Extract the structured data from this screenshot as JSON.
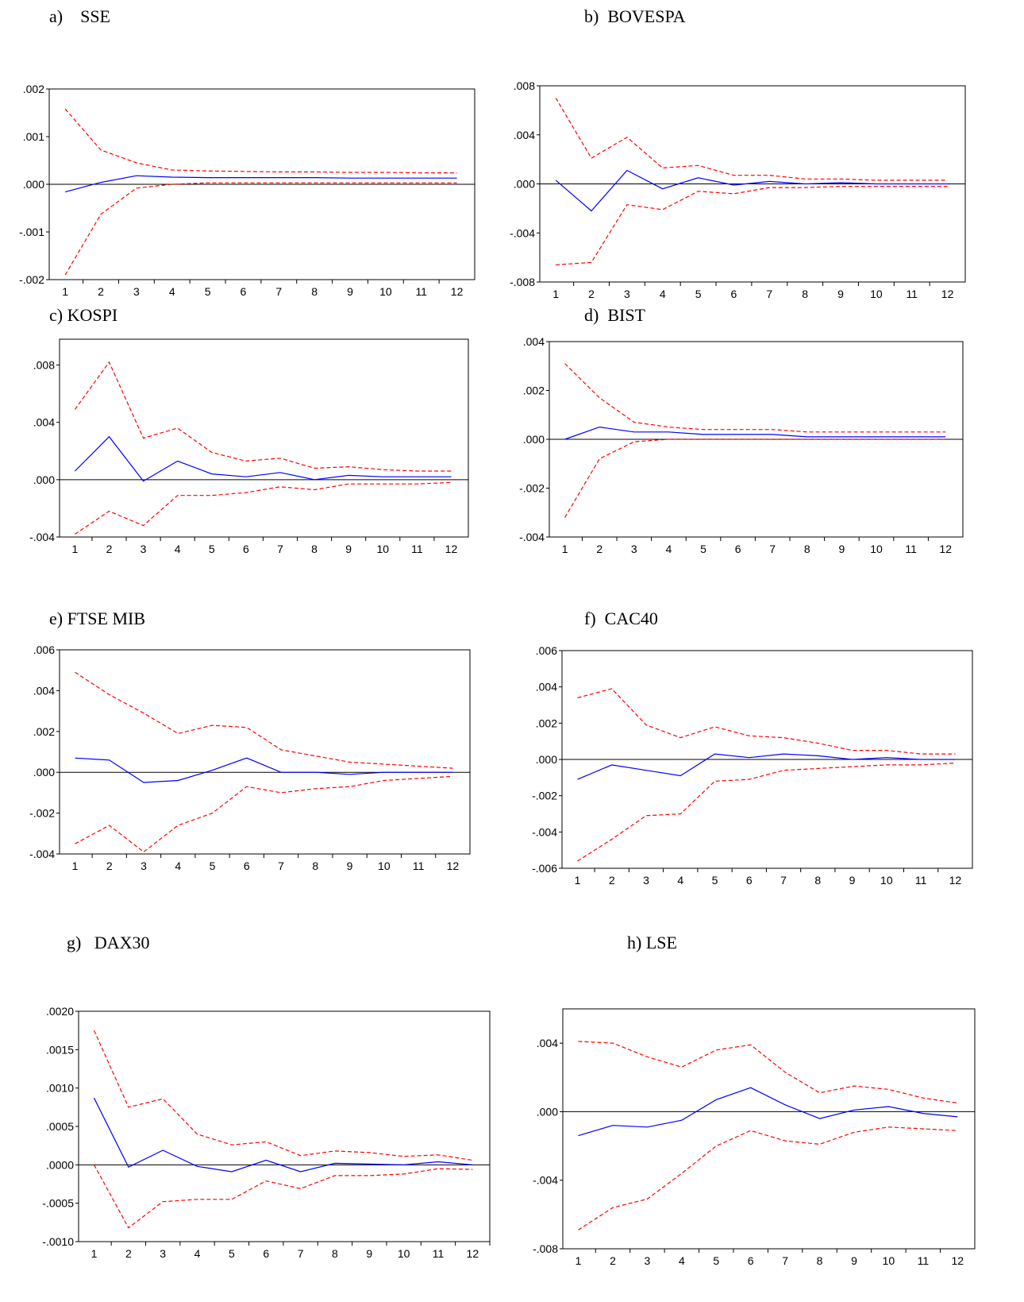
{
  "colors": {
    "response": "#0000ff",
    "bands": "#ff0000",
    "frame": "#000000"
  },
  "chart_data": [
    {
      "id": "a",
      "title": "a)    SSE",
      "type": "line",
      "x": [
        1,
        2,
        3,
        4,
        5,
        6,
        7,
        8,
        9,
        10,
        11,
        12
      ],
      "ylim": [
        -0.002,
        0.002
      ],
      "ytick_values": [
        -0.002,
        -0.001,
        0,
        0.001,
        0.002
      ],
      "ytick_labels": [
        "-.002",
        "-.001",
        ".000",
        ".001",
        ".002"
      ],
      "series": [
        {
          "role": "response",
          "values": [
            -0.00016,
            4e-05,
            0.00018,
            0.00015,
            0.00014,
            0.00014,
            0.00014,
            0.00014,
            0.00013,
            0.00013,
            0.00013,
            0.00013
          ]
        },
        {
          "role": "upper",
          "values": [
            0.00158,
            0.00072,
            0.00045,
            0.0003,
            0.00028,
            0.00027,
            0.00026,
            0.00026,
            0.00025,
            0.00025,
            0.00024,
            0.00024
          ]
        },
        {
          "role": "lower",
          "values": [
            -0.0019,
            -0.00063,
            -8e-05,
            0.0,
            3e-05,
            3e-05,
            3e-05,
            3e-05,
            3e-05,
            3e-05,
            3e-05,
            3e-05
          ]
        }
      ]
    },
    {
      "id": "b",
      "title": "b)  BOVESPA",
      "type": "line",
      "x": [
        1,
        2,
        3,
        4,
        5,
        6,
        7,
        8,
        9,
        10,
        11,
        12
      ],
      "ylim": [
        -0.008,
        0.008
      ],
      "ytick_values": [
        -0.008,
        -0.004,
        0,
        0.004,
        0.008
      ],
      "ytick_labels": [
        "-.008",
        "-.004",
        ".000",
        ".004",
        ".008"
      ],
      "series": [
        {
          "role": "response",
          "values": [
            0.0003,
            -0.0022,
            0.0011,
            -0.0004,
            0.0005,
            -0.0001,
            0.0002,
            0.0,
            0.0001,
            0.0,
            0.0,
            0.0
          ]
        },
        {
          "role": "upper",
          "values": [
            0.007,
            0.0021,
            0.0038,
            0.0013,
            0.0015,
            0.0007,
            0.0007,
            0.0004,
            0.0004,
            0.0003,
            0.0003,
            0.0003
          ]
        },
        {
          "role": "lower",
          "values": [
            -0.0066,
            -0.0064,
            -0.0017,
            -0.0021,
            -0.0006,
            -0.0008,
            -0.0003,
            -0.0003,
            -0.0002,
            -0.0002,
            -0.0002,
            -0.0002
          ]
        }
      ]
    },
    {
      "id": "c",
      "title": "c) KOSPI",
      "type": "line",
      "x": [
        1,
        2,
        3,
        4,
        5,
        6,
        7,
        8,
        9,
        10,
        11,
        12
      ],
      "ylim": [
        -0.004,
        0.0098
      ],
      "ytick_values": [
        -0.004,
        0,
        0.004,
        0.008
      ],
      "ytick_labels": [
        "-.004",
        ".000",
        ".004",
        ".008"
      ],
      "series": [
        {
          "role": "response",
          "values": [
            0.0006,
            0.003,
            -0.0001,
            0.0013,
            0.0004,
            0.0002,
            0.0005,
            0.0,
            0.0003,
            0.0002,
            0.0002,
            0.0002
          ]
        },
        {
          "role": "upper",
          "values": [
            0.0049,
            0.0082,
            0.0029,
            0.0036,
            0.0019,
            0.0013,
            0.0015,
            0.0008,
            0.0009,
            0.0007,
            0.0006,
            0.0006
          ]
        },
        {
          "role": "lower",
          "values": [
            -0.0038,
            -0.0022,
            -0.0032,
            -0.0011,
            -0.0011,
            -0.0009,
            -0.0005,
            -0.0007,
            -0.0003,
            -0.0003,
            -0.0003,
            -0.0002
          ]
        }
      ]
    },
    {
      "id": "d",
      "title": "d)  BIST",
      "type": "line",
      "x": [
        1,
        2,
        3,
        4,
        5,
        6,
        7,
        8,
        9,
        10,
        11,
        12
      ],
      "ylim": [
        -0.004,
        0.004
      ],
      "ytick_values": [
        -0.004,
        -0.002,
        0,
        0.002,
        0.004
      ],
      "ytick_labels": [
        "-.004",
        "-.002",
        ".000",
        ".002",
        ".004"
      ],
      "series": [
        {
          "role": "response",
          "values": [
            0.0,
            0.0005,
            0.0003,
            0.0003,
            0.0002,
            0.0002,
            0.0002,
            0.0001,
            0.0001,
            0.0001,
            0.0001,
            0.0001
          ]
        },
        {
          "role": "upper",
          "values": [
            0.0031,
            0.0017,
            0.0007,
            0.0005,
            0.0004,
            0.0004,
            0.0004,
            0.0003,
            0.0003,
            0.0003,
            0.0003,
            0.0003
          ]
        },
        {
          "role": "lower",
          "values": [
            -0.0032,
            -0.0008,
            -0.0001,
            0.0,
            0.0,
            0.0,
            0.0,
            0.0,
            0.0,
            0.0,
            0.0,
            0.0
          ]
        }
      ]
    },
    {
      "id": "e",
      "title": "e) FTSE MIB",
      "type": "line",
      "x": [
        1,
        2,
        3,
        4,
        5,
        6,
        7,
        8,
        9,
        10,
        11,
        12
      ],
      "ylim": [
        -0.004,
        0.006
      ],
      "ytick_values": [
        -0.004,
        -0.002,
        0,
        0.002,
        0.004,
        0.006
      ],
      "ytick_labels": [
        "-.004",
        "-.002",
        ".000",
        ".002",
        ".004",
        ".006"
      ],
      "series": [
        {
          "role": "response",
          "values": [
            0.0007,
            0.0006,
            -0.0005,
            -0.0004,
            0.0001,
            0.0007,
            0.0,
            0.0,
            -0.0001,
            0.0,
            0.0,
            0.0
          ]
        },
        {
          "role": "upper",
          "values": [
            0.0049,
            0.0038,
            0.0029,
            0.0019,
            0.0023,
            0.0022,
            0.0011,
            0.0008,
            0.0005,
            0.0004,
            0.0003,
            0.0002
          ]
        },
        {
          "role": "lower",
          "values": [
            -0.0035,
            -0.0026,
            -0.0039,
            -0.0026,
            -0.002,
            -0.0007,
            -0.001,
            -0.0008,
            -0.0007,
            -0.0004,
            -0.0003,
            -0.0002
          ]
        }
      ]
    },
    {
      "id": "f",
      "title": "f)  CAC40",
      "type": "line",
      "x": [
        1,
        2,
        3,
        4,
        5,
        6,
        7,
        8,
        9,
        10,
        11,
        12
      ],
      "ylim": [
        -0.006,
        0.006
      ],
      "ytick_values": [
        -0.006,
        -0.004,
        -0.002,
        0,
        0.002,
        0.004,
        0.006
      ],
      "ytick_labels": [
        "-.006",
        "-.004",
        "-.002",
        ".000",
        ".002",
        ".004",
        ".006"
      ],
      "series": [
        {
          "role": "response",
          "values": [
            -0.0011,
            -0.0003,
            -0.0006,
            -0.0009,
            0.0003,
            0.0001,
            0.0003,
            0.0002,
            0.0,
            0.0001,
            0.0,
            0.0
          ]
        },
        {
          "role": "upper",
          "values": [
            0.0034,
            0.0039,
            0.0019,
            0.0012,
            0.0018,
            0.0013,
            0.0012,
            0.0009,
            0.0005,
            0.0005,
            0.0003,
            0.0003
          ]
        },
        {
          "role": "lower",
          "values": [
            -0.0056,
            -0.0044,
            -0.0031,
            -0.003,
            -0.0012,
            -0.0011,
            -0.0006,
            -0.0005,
            -0.0004,
            -0.0003,
            -0.0003,
            -0.0002
          ]
        }
      ]
    },
    {
      "id": "g",
      "title": "g)   DAX30",
      "type": "line",
      "x": [
        1,
        2,
        3,
        4,
        5,
        6,
        7,
        8,
        9,
        10,
        11,
        12
      ],
      "ylim": [
        -0.001,
        0.002
      ],
      "ytick_values": [
        -0.001,
        -0.0005,
        0,
        0.0005,
        0.001,
        0.0015,
        0.002
      ],
      "ytick_labels": [
        "-.0010",
        "-.0005",
        ".0000",
        ".0005",
        ".0010",
        ".0015",
        ".0020"
      ],
      "series": [
        {
          "role": "response",
          "values": [
            0.00087,
            -3e-05,
            0.00019,
            -2e-05,
            -9e-05,
            6e-05,
            -9e-05,
            2e-05,
            1e-05,
            0.0,
            4e-05,
            0.0
          ]
        },
        {
          "role": "upper",
          "values": [
            0.00175,
            0.00075,
            0.00086,
            0.0004,
            0.00026,
            0.0003,
            0.00012,
            0.00018,
            0.00016,
            0.00011,
            0.00013,
            6e-05
          ]
        },
        {
          "role": "lower",
          "values": [
            0.0,
            -0.00082,
            -0.00048,
            -0.00045,
            -0.00045,
            -0.00021,
            -0.00031,
            -0.00014,
            -0.00014,
            -0.00012,
            -5e-05,
            -6e-05
          ]
        }
      ]
    },
    {
      "id": "h",
      "title": "h) LSE",
      "type": "line",
      "x": [
        1,
        2,
        3,
        4,
        5,
        6,
        7,
        8,
        9,
        10,
        11,
        12
      ],
      "ylim": [
        -0.008,
        0.006
      ],
      "ytick_values": [
        -0.008,
        -0.004,
        0,
        0.004
      ],
      "ytick_labels": [
        "-.008",
        "-.004",
        ".000",
        ".004"
      ],
      "series": [
        {
          "role": "response",
          "values": [
            -0.0014,
            -0.0008,
            -0.0009,
            -0.0005,
            0.0007,
            0.0014,
            0.0004,
            -0.0004,
            0.0001,
            0.0003,
            -0.0001,
            -0.0003
          ]
        },
        {
          "role": "upper",
          "values": [
            0.0041,
            0.004,
            0.0032,
            0.0026,
            0.0036,
            0.0039,
            0.0023,
            0.0011,
            0.0015,
            0.0013,
            0.0008,
            0.0005
          ]
        },
        {
          "role": "lower",
          "values": [
            -0.0069,
            -0.0056,
            -0.0051,
            -0.0036,
            -0.002,
            -0.0011,
            -0.0017,
            -0.0019,
            -0.0012,
            -0.0009,
            -0.001,
            -0.0011
          ]
        }
      ]
    }
  ]
}
